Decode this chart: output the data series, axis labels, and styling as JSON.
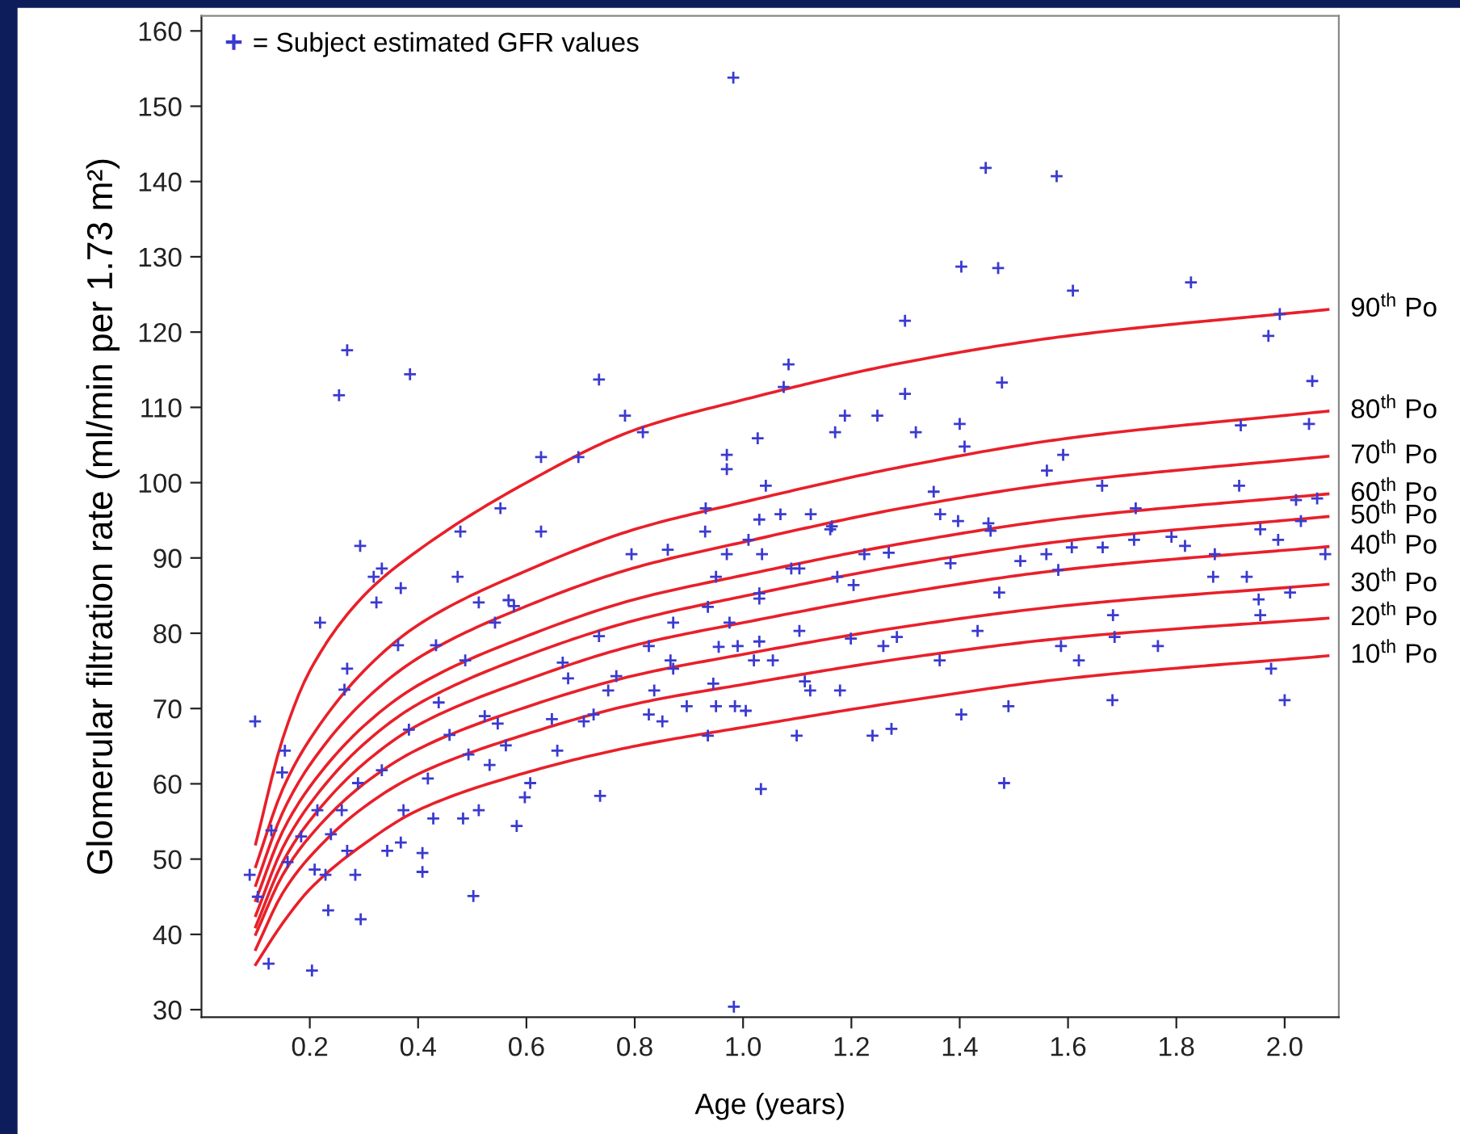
{
  "chart_data": {
    "type": "scatter",
    "xlabel": "Age (years)",
    "ylabel": "Glomerular filtration rate (ml/min per 1.73 m²)",
    "xlim": [
      0,
      2.1
    ],
    "xticks": [
      {
        "value": 0.2,
        "label": "0.2"
      },
      {
        "value": 0.4,
        "label": "0.4"
      },
      {
        "value": 0.6,
        "label": "0.6"
      },
      {
        "value": 0.8,
        "label": "0.8"
      },
      {
        "value": 1.0,
        "label": "1.0"
      },
      {
        "value": 1.2,
        "label": "1.2"
      },
      {
        "value": 1.4,
        "label": "1.4"
      },
      {
        "value": 1.6,
        "label": "1.6"
      },
      {
        "value": 1.8,
        "label": "1.8"
      },
      {
        "value": 2.0,
        "label": "2.0"
      }
    ],
    "ylim": [
      29,
      162
    ],
    "yticks": [
      30,
      40,
      50,
      60,
      70,
      80,
      90,
      100,
      110,
      120,
      130,
      140,
      150,
      160
    ],
    "grid": false,
    "legend": "top left",
    "series": [
      {
        "name": "90$^{th}$ Po",
        "type": "line",
        "color": "#e8202a",
        "x": [
          0.1,
          0.15,
          0.2,
          0.3,
          0.4,
          0.6,
          0.8,
          1.0,
          1.3,
          1.6,
          2.08
        ],
        "values": [
          52,
          66,
          75,
          85,
          91,
          100,
          107,
          111,
          116,
          119.5,
          123
        ]
      },
      {
        "name": "80$^{th}$ Po",
        "type": "line",
        "color": "#e8202a",
        "x": [
          0.1,
          0.15,
          0.2,
          0.3,
          0.4,
          0.6,
          0.8,
          1.0,
          1.3,
          1.6,
          2.08
        ],
        "values": [
          49,
          59.3,
          65.9,
          75.0,
          81.1,
          88.3,
          93.8,
          97.4,
          102.2,
          105.9,
          109.5
        ]
      },
      {
        "name": "70$^{th}$ Po",
        "type": "line",
        "color": "#e8202a",
        "x": [
          0.1,
          0.15,
          0.2,
          0.3,
          0.4,
          0.6,
          0.8,
          1.0,
          1.3,
          1.6,
          2.08
        ],
        "values": [
          46.5,
          56.2,
          62.5,
          71.0,
          76.7,
          83.6,
          88.7,
          92.1,
          96.7,
          100.1,
          103.5
        ]
      },
      {
        "name": "60$^{th}$ Po",
        "type": "line",
        "color": "#e8202a",
        "x": [
          0.1,
          0.15,
          0.2,
          0.3,
          0.4,
          0.6,
          0.8,
          1.0,
          1.3,
          1.6,
          2.08
        ],
        "values": [
          44.5,
          53.7,
          59.6,
          67.7,
          73.1,
          79.6,
          84.5,
          87.7,
          92.0,
          95.3,
          98.5
        ]
      },
      {
        "name": "50$^{th}$ Po",
        "type": "line",
        "color": "#e8202a",
        "x": [
          0.1,
          0.15,
          0.2,
          0.3,
          0.4,
          0.6,
          0.8,
          1.0,
          1.3,
          1.6,
          2.08
        ],
        "values": [
          42.5,
          51.5,
          57.3,
          65.3,
          70.6,
          77.0,
          81.7,
          84.9,
          89.1,
          92.3,
          95.5
        ]
      },
      {
        "name": "40$^{th}$ Po",
        "type": "line",
        "color": "#e8202a",
        "x": [
          0.1,
          0.15,
          0.2,
          0.3,
          0.4,
          0.6,
          0.8,
          1.0,
          1.3,
          1.6,
          2.08
        ],
        "values": [
          41,
          49.6,
          55.1,
          62.7,
          67.8,
          73.8,
          78.4,
          81.4,
          85.4,
          88.5,
          91.5
        ]
      },
      {
        "name": "30$^{th}$ Po",
        "type": "line",
        "color": "#e8202a",
        "x": [
          0.1,
          0.15,
          0.2,
          0.3,
          0.4,
          0.6,
          0.8,
          1.0,
          1.3,
          1.6,
          2.08
        ],
        "values": [
          40,
          47.9,
          53.0,
          60.0,
          64.6,
          70.2,
          74.4,
          77.2,
          80.9,
          83.7,
          86.5
        ]
      },
      {
        "name": "20$^{th}$ Po",
        "type": "line",
        "color": "#e8202a",
        "x": [
          0.1,
          0.15,
          0.2,
          0.3,
          0.4,
          0.6,
          0.8,
          1.0,
          1.3,
          1.6,
          2.08
        ],
        "values": [
          38,
          45.5,
          50.3,
          56.9,
          61.3,
          66.6,
          70.6,
          73.2,
          76.7,
          79.4,
          82
        ]
      },
      {
        "name": "10$^{th}$ Po",
        "type": "line",
        "color": "#e8202a",
        "x": [
          0.1,
          0.15,
          0.2,
          0.3,
          0.4,
          0.6,
          0.8,
          1.0,
          1.3,
          1.6,
          2.08
        ],
        "values": [
          36,
          41.5,
          46,
          52,
          56.5,
          61.5,
          65,
          67.5,
          71,
          74,
          77
        ]
      },
      {
        "name": "= Subject estimated GFR values",
        "marker": "cross",
        "color": "#3a3ad0",
        "x": [
          0.293,
          0.478,
          0.627,
          0.318,
          0.333,
          0.323,
          0.368,
          0.473,
          0.512,
          0.567,
          0.577,
          0.219,
          0.269,
          0.264,
          0.363,
          0.433,
          0.487,
          0.542,
          0.099,
          0.154,
          0.149,
          0.383,
          0.438,
          0.458,
          0.523,
          0.562,
          0.647,
          0.657,
          0.333,
          0.289,
          0.259,
          0.214,
          0.184,
          0.239,
          0.269,
          0.209,
          0.229,
          0.284,
          0.343,
          0.368,
          0.408,
          0.408,
          0.373,
          0.428,
          0.483,
          0.512,
          0.582,
          0.597,
          0.607,
          0.089,
          0.104,
          0.234,
          0.294,
          0.502,
          0.124,
          0.204,
          0.159,
          0.129,
          0.418,
          0.532,
          0.493,
          0.677,
          0.667,
          0.547,
          0.269,
          0.254,
          0.385,
          0.627,
          0.696,
          0.552,
          0.982,
          1.403,
          1.299,
          0.734,
          1.084,
          1.075,
          0.782,
          0.815,
          1.027,
          0.97,
          0.97,
          1.042,
          0.931,
          1.03,
          1.069,
          1.125,
          1.17,
          1.188,
          1.248,
          1.299,
          1.319,
          1.4,
          1.409,
          1.352,
          1.364,
          1.397,
          1.161,
          1.448,
          1.579,
          1.471,
          1.609,
          1.827,
          1.991,
          1.97,
          2.051,
          1.478,
          1.591,
          1.561,
          1.663,
          1.725,
          1.919,
          2.045,
          1.916,
          2.06,
          2.021,
          1.457,
          2.03,
          1.955,
          1.791,
          0.794,
          0.861,
          0.93,
          1.01,
          1.035,
          0.97,
          0.95,
          1.089,
          1.104,
          1.174,
          1.204,
          1.164,
          1.224,
          1.269,
          1.383,
          1.03,
          1.03,
          0.935,
          0.975,
          0.871,
          1.104,
          0.734,
          0.826,
          0.955,
          0.99,
          1.03,
          1.02,
          1.055,
          0.866,
          0.871,
          1.199,
          1.259,
          1.284,
          0.766,
          0.751,
          0.836,
          0.945,
          1.114,
          1.124,
          1.179,
          1.363,
          0.706,
          0.724,
          0.826,
          0.851,
          0.896,
          0.95,
          0.985,
          1.005,
          0.935,
          1.099,
          1.239,
          1.274,
          1.403,
          0.736,
          1.033,
          0.983,
          1.453,
          1.512,
          1.56,
          1.607,
          1.664,
          1.722,
          1.816,
          1.871,
          1.988,
          2.075,
          1.582,
          1.473,
          1.868,
          1.93,
          1.952,
          2.01,
          1.955,
          1.433,
          1.683,
          1.686,
          1.587,
          1.766,
          1.62,
          1.975,
          1.49,
          1.682,
          2.0,
          1.482
        ],
        "values": [
          91.6,
          93.5,
          93.5,
          87.5,
          88.6,
          84.1,
          86.0,
          87.5,
          84.1,
          84.4,
          83.6,
          81.4,
          75.3,
          72.5,
          78.4,
          78.4,
          76.4,
          81.4,
          68.3,
          64.4,
          61.5,
          67.2,
          70.8,
          66.5,
          69.0,
          65.1,
          68.6,
          64.4,
          61.8,
          60.1,
          56.5,
          56.5,
          53.0,
          53.3,
          51.1,
          48.6,
          47.9,
          47.9,
          51.1,
          52.2,
          50.8,
          48.3,
          56.5,
          55.4,
          55.4,
          56.5,
          54.4,
          58.2,
          60.1,
          47.9,
          45.0,
          43.2,
          42.0,
          45.1,
          36.1,
          35.2,
          49.6,
          53.8,
          60.7,
          62.5,
          63.9,
          74.0,
          76.1,
          68.0,
          117.6,
          111.6,
          114.4,
          103.4,
          103.4,
          96.6,
          153.8,
          128.7,
          121.5,
          113.7,
          115.7,
          112.7,
          108.9,
          106.7,
          105.9,
          103.7,
          101.8,
          99.6,
          96.6,
          95.1,
          95.8,
          95.8,
          106.7,
          108.9,
          108.9,
          111.8,
          106.7,
          107.8,
          104.8,
          98.8,
          95.8,
          94.9,
          93.8,
          141.8,
          140.7,
          128.5,
          125.5,
          126.6,
          122.4,
          119.5,
          113.5,
          113.3,
          103.7,
          101.6,
          99.6,
          96.6,
          107.6,
          107.8,
          99.6,
          97.9,
          97.7,
          93.6,
          94.9,
          93.8,
          92.8,
          90.5,
          91.1,
          93.5,
          92.4,
          90.5,
          90.5,
          87.5,
          88.6,
          88.6,
          87.5,
          86.4,
          94.2,
          90.5,
          90.7,
          89.3,
          85.3,
          84.6,
          83.5,
          81.4,
          81.4,
          80.3,
          79.6,
          78.3,
          78.2,
          78.3,
          78.9,
          76.4,
          76.4,
          76.4,
          75.3,
          79.3,
          78.3,
          79.5,
          74.3,
          72.4,
          72.4,
          73.3,
          73.6,
          72.4,
          72.4,
          76.4,
          68.3,
          69.2,
          69.2,
          68.3,
          70.3,
          70.3,
          70.3,
          69.7,
          66.4,
          66.4,
          66.4,
          67.3,
          69.2,
          58.4,
          59.3,
          30.4,
          94.6,
          89.6,
          90.5,
          91.4,
          91.4,
          92.4,
          91.6,
          90.5,
          92.4,
          90.5,
          88.4,
          85.4,
          87.5,
          87.5,
          84.5,
          85.4,
          82.4,
          80.3,
          82.4,
          79.5,
          78.3,
          78.3,
          76.4,
          75.3,
          70.3,
          71.1,
          71.1,
          60.1
        ]
      }
    ]
  }
}
